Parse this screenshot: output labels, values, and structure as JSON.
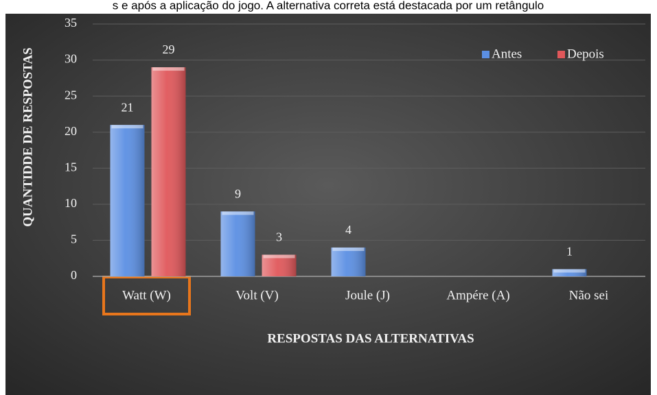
{
  "caption": "s e após a aplicação do jogo. A alternativa correta está destacada por um retângulo",
  "chart_data": {
    "type": "bar",
    "xlabel": "RESPOSTAS DAS ALTERNATIVAS",
    "ylabel": "QUANTIDDE DE RESPOSTAS",
    "categories": [
      "Watt (W)",
      "Volt (V)",
      "Joule (J)",
      "Ampére (A)",
      "Não sei"
    ],
    "series": [
      {
        "name": "Antes",
        "color": "#5b8fe3",
        "values": [
          21,
          9,
          4,
          0,
          1
        ]
      },
      {
        "name": "Depois",
        "color": "#e0575a",
        "values": [
          29,
          3,
          0,
          0,
          0
        ]
      }
    ],
    "ylim": [
      0,
      35
    ],
    "yticks": [
      0,
      5,
      10,
      15,
      20,
      25,
      30,
      35
    ],
    "grid": true,
    "legend": "top-right"
  }
}
